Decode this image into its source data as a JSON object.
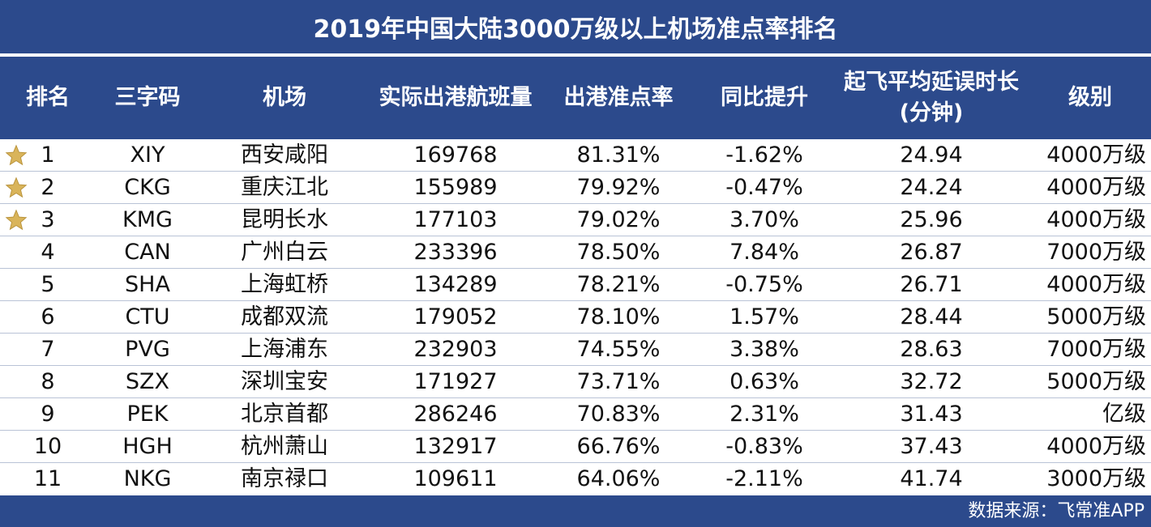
{
  "title": "2019年中国大陆3000万级以上机场准点率排名",
  "headers": {
    "rank": "排名",
    "code": "三字码",
    "airport": "机场",
    "flights": "实际出港航班量",
    "ontime": "出港准点率",
    "yoy": "同比提升",
    "delay_line1": "起飞平均延误时长",
    "delay_line2": "(分钟)",
    "level": "级别"
  },
  "star_color": "#d9b45a",
  "header_bg": "#2c4a8c",
  "rows": [
    {
      "rank": "1",
      "code": "XIY",
      "airport": "西安咸阳",
      "flights": "169768",
      "ontime": "81.31%",
      "yoy": "-1.62%",
      "delay": "24.94",
      "level": "4000万级",
      "star": true
    },
    {
      "rank": "2",
      "code": "CKG",
      "airport": "重庆江北",
      "flights": "155989",
      "ontime": "79.92%",
      "yoy": "-0.47%",
      "delay": "24.24",
      "level": "4000万级",
      "star": true
    },
    {
      "rank": "3",
      "code": "KMG",
      "airport": "昆明长水",
      "flights": "177103",
      "ontime": "79.02%",
      "yoy": "3.70%",
      "delay": "25.96",
      "level": "4000万级",
      "star": true
    },
    {
      "rank": "4",
      "code": "CAN",
      "airport": "广州白云",
      "flights": "233396",
      "ontime": "78.50%",
      "yoy": "7.84%",
      "delay": "26.87",
      "level": "7000万级",
      "star": false
    },
    {
      "rank": "5",
      "code": "SHA",
      "airport": "上海虹桥",
      "flights": "134289",
      "ontime": "78.21%",
      "yoy": "-0.75%",
      "delay": "26.71",
      "level": "4000万级",
      "star": false
    },
    {
      "rank": "6",
      "code": "CTU",
      "airport": "成都双流",
      "flights": "179052",
      "ontime": "78.10%",
      "yoy": "1.57%",
      "delay": "28.44",
      "level": "5000万级",
      "star": false
    },
    {
      "rank": "7",
      "code": "PVG",
      "airport": "上海浦东",
      "flights": "232903",
      "ontime": "74.55%",
      "yoy": "3.38%",
      "delay": "28.63",
      "level": "7000万级",
      "star": false
    },
    {
      "rank": "8",
      "code": "SZX",
      "airport": "深圳宝安",
      "flights": "171927",
      "ontime": "73.71%",
      "yoy": "0.63%",
      "delay": "32.72",
      "level": "5000万级",
      "star": false
    },
    {
      "rank": "9",
      "code": "PEK",
      "airport": "北京首都",
      "flights": "286246",
      "ontime": "70.83%",
      "yoy": "2.31%",
      "delay": "31.43",
      "level": "亿级",
      "star": false
    },
    {
      "rank": "10",
      "code": "HGH",
      "airport": "杭州萧山",
      "flights": "132917",
      "ontime": "66.76%",
      "yoy": "-0.83%",
      "delay": "37.43",
      "level": "4000万级",
      "star": false
    },
    {
      "rank": "11",
      "code": "NKG",
      "airport": "南京禄口",
      "flights": "109611",
      "ontime": "64.06%",
      "yoy": "-2.11%",
      "delay": "41.74",
      "level": "3000万级",
      "star": false
    }
  ],
  "footer": {
    "source": "数据来源：飞常准APP"
  }
}
